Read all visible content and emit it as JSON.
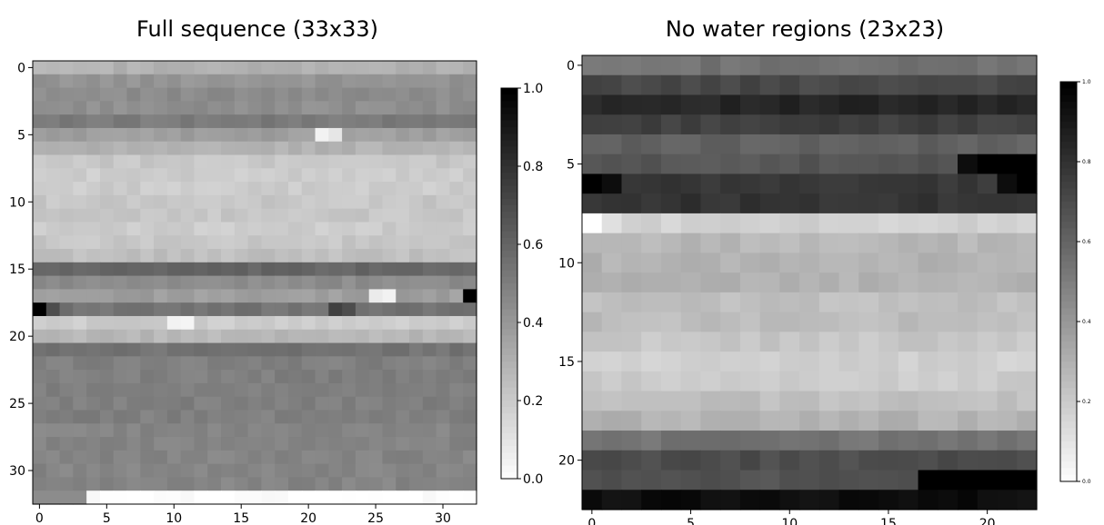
{
  "chart_data": [
    {
      "type": "heatmap",
      "title": "Full sequence (33x33)",
      "xlabel": "",
      "ylabel": "",
      "grid": false,
      "rows": 33,
      "cols": 33,
      "vmin": 0.0,
      "vmax": 1.0,
      "colormap": "gray_r",
      "x_ticks": [
        0,
        5,
        10,
        15,
        20,
        25,
        30
      ],
      "y_ticks": [
        0,
        5,
        10,
        15,
        20,
        25,
        30
      ],
      "colorbar_ticks": [
        0.0,
        0.2,
        0.4,
        0.6,
        0.8,
        1.0
      ],
      "colorbar_tick_labels": [
        "0.0",
        "0.2",
        "0.4",
        "0.6",
        "0.8",
        "1.0"
      ],
      "row_values": [
        0.3,
        0.42,
        0.45,
        0.44,
        0.52,
        0.38,
        0.3,
        0.22,
        0.2,
        0.2,
        0.22,
        0.22,
        0.2,
        0.22,
        0.25,
        0.6,
        0.45,
        0.38,
        0.55,
        0.2,
        0.28,
        0.55,
        0.5,
        0.5,
        0.5,
        0.5,
        0.5,
        0.48,
        0.48,
        0.48,
        0.48,
        0.48,
        0.0
      ],
      "special_cells": [
        {
          "row": 5,
          "col": 21,
          "value": 0.05
        },
        {
          "row": 5,
          "col": 22,
          "value": 0.1
        },
        {
          "row": 17,
          "col": 32,
          "value": 1.0
        },
        {
          "row": 17,
          "col": 25,
          "value": 0.08
        },
        {
          "row": 17,
          "col": 26,
          "value": 0.05
        },
        {
          "row": 18,
          "col": 0,
          "value": 1.0
        },
        {
          "row": 18,
          "col": 1,
          "value": 0.7
        },
        {
          "row": 18,
          "col": 22,
          "value": 0.75
        },
        {
          "row": 18,
          "col": 23,
          "value": 0.7
        },
        {
          "row": 19,
          "col": 10,
          "value": 0.05
        },
        {
          "row": 19,
          "col": 11,
          "value": 0.04
        },
        {
          "row": 32,
          "col": 0,
          "value": 0.45
        },
        {
          "row": 32,
          "col": 1,
          "value": 0.45
        },
        {
          "row": 32,
          "col": 2,
          "value": 0.45
        },
        {
          "row": 32,
          "col": 3,
          "value": 0.45
        }
      ]
    },
    {
      "type": "heatmap",
      "title": "No water regions (23x23)",
      "xlabel": "",
      "ylabel": "",
      "grid": false,
      "rows": 23,
      "cols": 23,
      "vmin": 0.0,
      "vmax": 1.0,
      "colormap": "gray_r",
      "x_ticks": [
        0,
        5,
        10,
        15,
        20
      ],
      "y_ticks": [
        0,
        5,
        10,
        15,
        20
      ],
      "colorbar_ticks": [
        0.0,
        0.2,
        0.4,
        0.6,
        0.8,
        1.0
      ],
      "colorbar_tick_labels": [
        "0.0",
        "0.2",
        "0.4",
        "0.6",
        "0.8",
        "1.0"
      ],
      "row_values": [
        0.55,
        0.72,
        0.85,
        0.75,
        0.62,
        0.66,
        0.78,
        0.8,
        0.18,
        0.28,
        0.3,
        0.3,
        0.25,
        0.26,
        0.22,
        0.18,
        0.2,
        0.25,
        0.3,
        0.55,
        0.7,
        0.68,
        0.95
      ],
      "special_cells": [
        {
          "row": 8,
          "col": 0,
          "value": 0.0
        },
        {
          "row": 8,
          "col": 1,
          "value": 0.12
        },
        {
          "row": 5,
          "col": 19,
          "value": 0.95
        },
        {
          "row": 5,
          "col": 20,
          "value": 1.0
        },
        {
          "row": 5,
          "col": 21,
          "value": 1.0
        },
        {
          "row": 5,
          "col": 22,
          "value": 1.0
        },
        {
          "row": 6,
          "col": 0,
          "value": 1.0
        },
        {
          "row": 6,
          "col": 1,
          "value": 0.95
        },
        {
          "row": 6,
          "col": 21,
          "value": 0.95
        },
        {
          "row": 6,
          "col": 22,
          "value": 1.0
        },
        {
          "row": 21,
          "col": 17,
          "value": 1.0
        },
        {
          "row": 21,
          "col": 18,
          "value": 1.0
        },
        {
          "row": 21,
          "col": 19,
          "value": 1.0
        },
        {
          "row": 21,
          "col": 20,
          "value": 1.0
        },
        {
          "row": 21,
          "col": 21,
          "value": 1.0
        },
        {
          "row": 21,
          "col": 22,
          "value": 1.0
        }
      ]
    }
  ]
}
